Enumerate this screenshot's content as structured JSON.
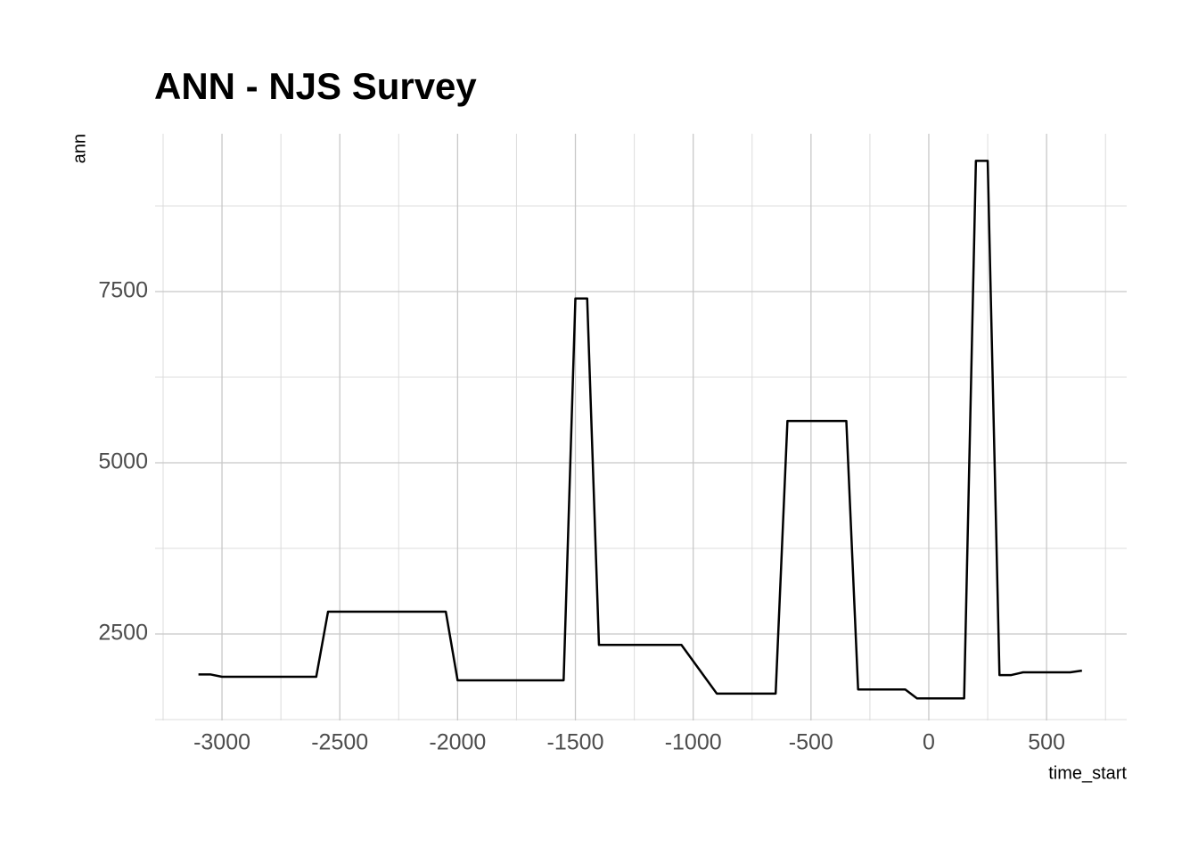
{
  "chart_data": {
    "type": "line",
    "title": "ANN - NJS Survey",
    "x_label": "time_start",
    "y_label": "ann",
    "x": [
      -3100,
      -3050,
      -3000,
      -2600,
      -2550,
      -2050,
      -2000,
      -1550,
      -1500,
      -1450,
      -1400,
      -1050,
      -900,
      -650,
      -600,
      -350,
      -300,
      -100,
      -50,
      150,
      200,
      250,
      300,
      350,
      400,
      600,
      650
    ],
    "series": [
      {
        "name": "ann",
        "color": "#000000",
        "values": [
          1910,
          1910,
          1875,
          1875,
          2825,
          2825,
          1823,
          1823,
          7400,
          7400,
          2340,
          2340,
          1630,
          1630,
          5610,
          5610,
          1690,
          1690,
          1560,
          1560,
          9410,
          9410,
          1900,
          1900,
          1940,
          1940,
          1965
        ]
      }
    ],
    "xlim": [
      -3284,
      840
    ],
    "ylim": [
      1237,
      9805
    ],
    "xticks": [
      -3000,
      -2500,
      -2000,
      -1500,
      -1000,
      -500,
      0,
      500
    ],
    "yticks": [
      2500,
      5000,
      7500
    ],
    "x_minor_ticks": [
      -3250,
      -2750,
      -2250,
      -1750,
      -1250,
      -750,
      -250,
      250,
      750
    ],
    "y_minor_ticks": [
      1250,
      3750,
      6250,
      8750
    ],
    "grid": true
  }
}
